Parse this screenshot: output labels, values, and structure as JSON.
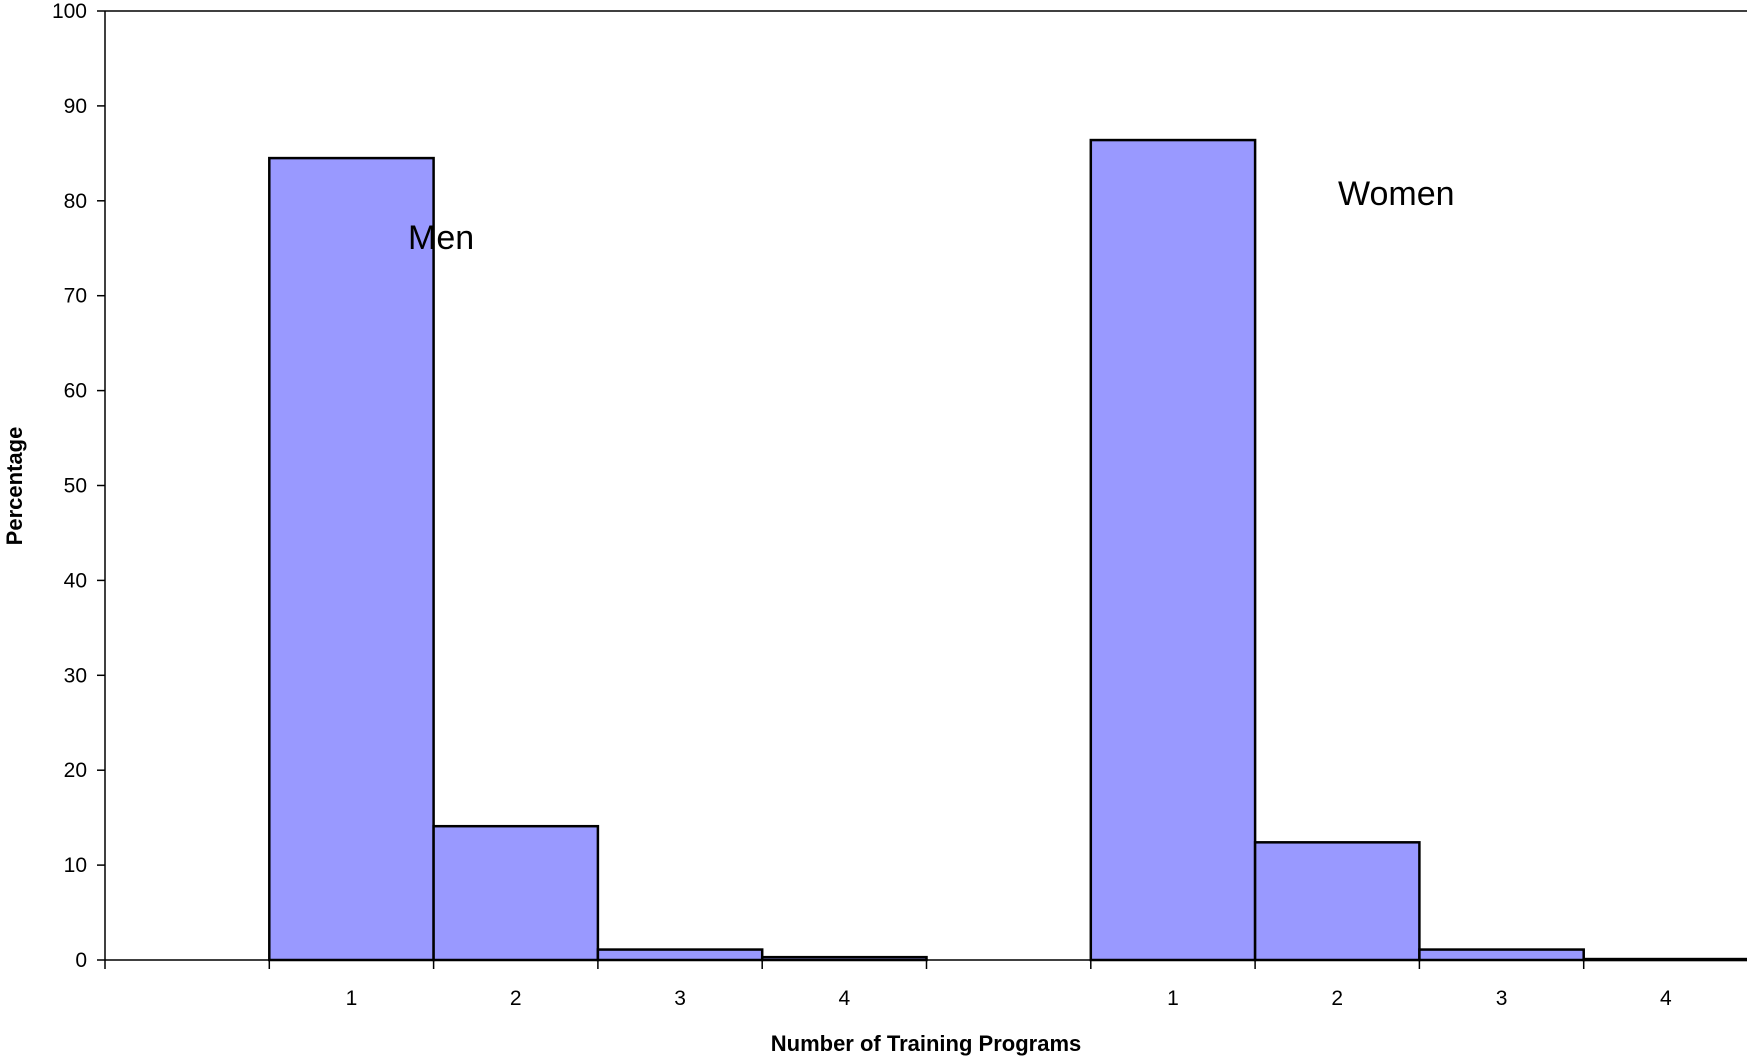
{
  "chart_data": {
    "type": "bar",
    "xlabel": "Number of Training Programs",
    "ylabel": "Percentage",
    "ylim": [
      0,
      100
    ],
    "y_ticks": [
      "0",
      "10",
      "20",
      "30",
      "40",
      "50",
      "60",
      "70",
      "80",
      "90",
      "100"
    ],
    "grid": false,
    "bar_color": "#9999ff",
    "groups": [
      {
        "label": "Men",
        "categories": [
          "1",
          "2",
          "3",
          "4"
        ],
        "values": [
          84.5,
          14.1,
          1.1,
          0.3
        ]
      },
      {
        "label": "Women",
        "categories": [
          "1",
          "2",
          "3",
          "4"
        ],
        "values": [
          86.4,
          12.4,
          1.1,
          0.1
        ]
      }
    ]
  }
}
